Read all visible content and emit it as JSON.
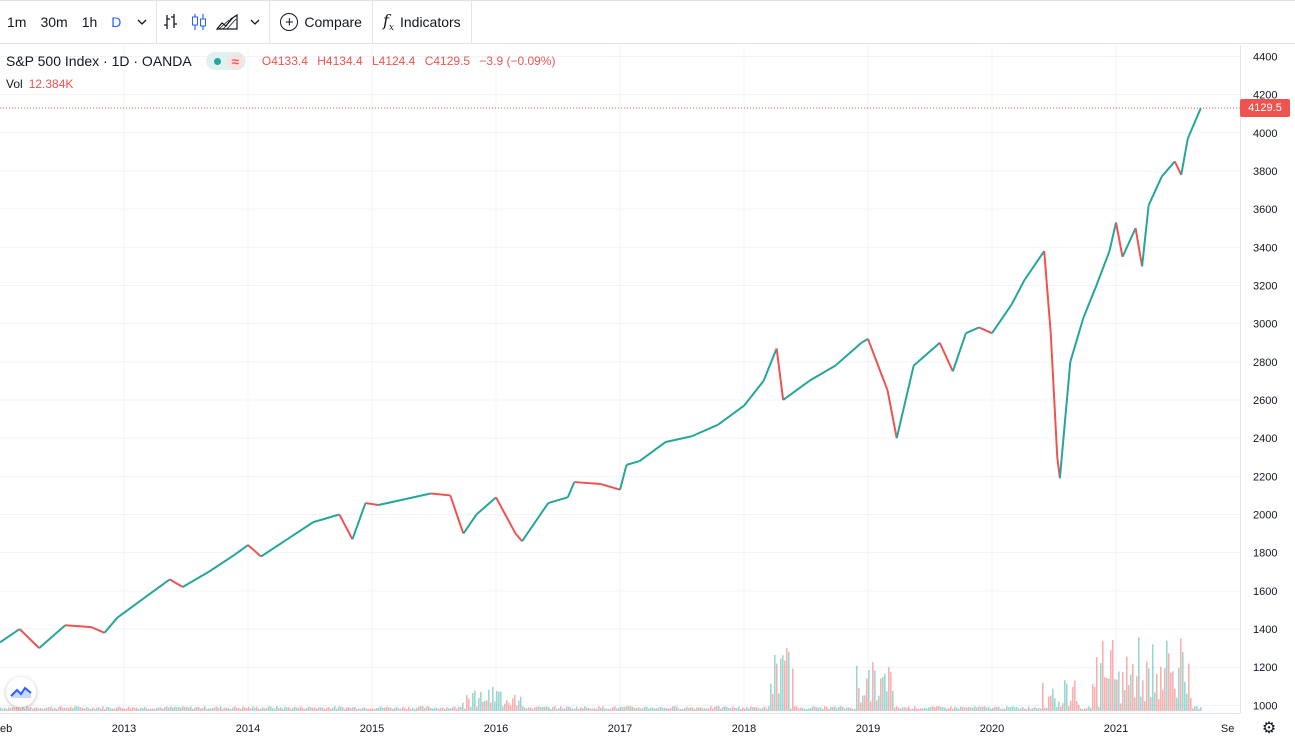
{
  "toolbar": {
    "intervals": [
      "1m",
      "30m",
      "1h",
      "D"
    ],
    "active_interval": "D",
    "compare_label": "Compare",
    "indicators_label": "Indicators"
  },
  "legend": {
    "title": "S&P 500 Index · 1D · OANDA",
    "open": "O4133.4",
    "high": "H4134.4",
    "low": "L4124.4",
    "close": "C4129.5",
    "change": "−3.9 (−0.09%)",
    "vol_label": "Vol",
    "vol_value": "12.384K"
  },
  "last_price": "4129.5",
  "colors": {
    "up": "#26a69a",
    "down": "#ef5350",
    "grid": "#f0f3fa",
    "text": "#131722"
  },
  "icons": [
    "chevron-down-icon",
    "bar-style-icon",
    "candles-icon",
    "area-style-icon",
    "plus-circle-icon",
    "fx-icon",
    "tradingview-logo-icon",
    "gear-icon"
  ],
  "chart_data": {
    "type": "line",
    "y_axis_ticks": [
      1000,
      1200,
      1400,
      1600,
      1800,
      2000,
      2200,
      2400,
      2600,
      2800,
      3000,
      3200,
      3400,
      3600,
      3800,
      4000,
      4200,
      4400
    ],
    "x_axis_ticks": [
      "eb",
      "2013",
      "2014",
      "2015",
      "2016",
      "2017",
      "2018",
      "2019",
      "2020",
      "2021",
      "Se"
    ],
    "ylim": [
      960,
      4460
    ],
    "xlim": [
      2012.1,
      2021.6
    ],
    "series": [
      {
        "x": [
          2012.1,
          2012.25,
          2012.4,
          2012.6,
          2012.8,
          2012.9,
          2013.0,
          2013.2,
          2013.4,
          2013.5,
          2013.7,
          2013.9,
          2014.0,
          2014.1,
          2014.3,
          2014.5,
          2014.7,
          2014.8,
          2014.9,
          2015.0,
          2015.2,
          2015.4,
          2015.55,
          2015.65,
          2015.75,
          2015.9,
          2016.05,
          2016.1,
          2016.3,
          2016.45,
          2016.5,
          2016.7,
          2016.85,
          2016.9,
          2017.0,
          2017.2,
          2017.4,
          2017.6,
          2017.8,
          2017.95,
          2018.05,
          2018.1,
          2018.3,
          2018.5,
          2018.7,
          2018.75,
          2018.9,
          2018.97,
          2019.1,
          2019.3,
          2019.4,
          2019.5,
          2019.6,
          2019.7,
          2019.85,
          2019.95,
          2020.1,
          2020.15,
          2020.2,
          2020.22,
          2020.3,
          2020.4,
          2020.5,
          2020.6,
          2020.65,
          2020.7,
          2020.8,
          2020.85,
          2020.9,
          2021.0,
          2021.1,
          2021.15,
          2021.2,
          2021.3
        ],
        "values": [
          1330,
          1400,
          1300,
          1420,
          1410,
          1380,
          1460,
          1560,
          1660,
          1620,
          1700,
          1790,
          1840,
          1780,
          1870,
          1960,
          2000,
          1870,
          2060,
          2050,
          2080,
          2110,
          2100,
          1900,
          2000,
          2090,
          1900,
          1860,
          2060,
          2090,
          2170,
          2160,
          2130,
          2260,
          2280,
          2380,
          2410,
          2470,
          2570,
          2700,
          2870,
          2600,
          2700,
          2780,
          2900,
          2920,
          2650,
          2400,
          2780,
          2900,
          2750,
          2950,
          2980,
          2950,
          3100,
          3230,
          3380,
          2950,
          2300,
          2190,
          2800,
          3030,
          3200,
          3380,
          3530,
          3350,
          3500,
          3300,
          3620,
          3770,
          3850,
          3780,
          3970,
          4129.5
        ]
      }
    ]
  }
}
